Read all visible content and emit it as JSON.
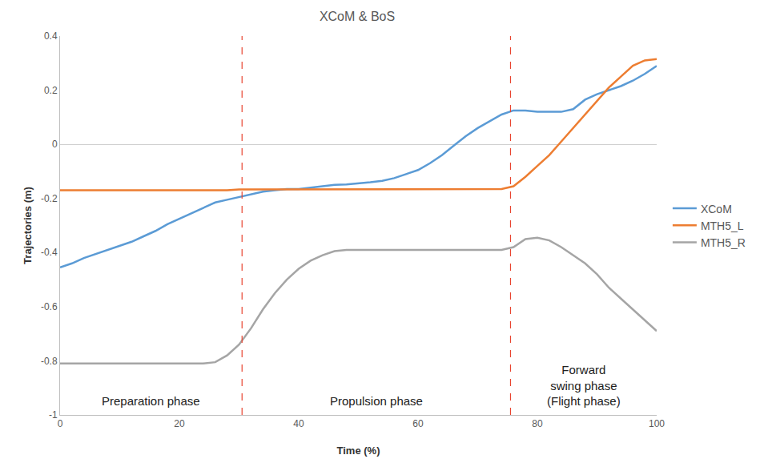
{
  "chart_data": {
    "type": "line",
    "title": "XCoM & BoS",
    "x_label": "Time (%)",
    "y_label": "Trajectories (m)",
    "x": [
      0,
      2,
      4,
      6,
      8,
      10,
      12,
      14,
      16,
      18,
      20,
      22,
      24,
      26,
      28,
      30,
      32,
      34,
      36,
      38,
      40,
      42,
      44,
      46,
      48,
      50,
      52,
      54,
      56,
      58,
      60,
      62,
      64,
      66,
      68,
      70,
      72,
      74,
      76,
      78,
      80,
      82,
      84,
      86,
      88,
      90,
      92,
      94,
      96,
      98,
      100
    ],
    "series": [
      {
        "name": "XCoM",
        "color": "#5b9bd5",
        "values": [
          -0.455,
          -0.44,
          -0.42,
          -0.405,
          -0.39,
          -0.375,
          -0.36,
          -0.34,
          -0.32,
          -0.295,
          -0.275,
          -0.255,
          -0.235,
          -0.215,
          -0.205,
          -0.195,
          -0.185,
          -0.175,
          -0.17,
          -0.165,
          -0.165,
          -0.16,
          -0.155,
          -0.15,
          -0.148,
          -0.145,
          -0.14,
          -0.135,
          -0.125,
          -0.11,
          -0.095,
          -0.07,
          -0.04,
          -0.005,
          0.03,
          0.06,
          0.085,
          0.11,
          0.125,
          0.125,
          0.12,
          0.12,
          0.12,
          0.13,
          0.165,
          0.185,
          0.2,
          0.215,
          0.235,
          0.26,
          0.29
        ]
      },
      {
        "name": "MTH5_L",
        "color": "#ed7d31",
        "values": [
          -0.17,
          -0.17,
          -0.17,
          -0.17,
          -0.17,
          -0.17,
          -0.17,
          -0.17,
          -0.17,
          -0.17,
          -0.17,
          -0.17,
          -0.17,
          -0.17,
          -0.17,
          -0.167,
          -0.167,
          -0.167,
          -0.167,
          -0.167,
          -0.167,
          -0.167,
          -0.167,
          -0.167,
          -0.167,
          -0.167,
          -0.167,
          -0.167,
          -0.167,
          -0.167,
          -0.167,
          -0.167,
          -0.167,
          -0.167,
          -0.167,
          -0.167,
          -0.167,
          -0.165,
          -0.155,
          -0.12,
          -0.08,
          -0.04,
          0.01,
          0.06,
          0.11,
          0.16,
          0.21,
          0.25,
          0.29,
          0.31,
          0.315
        ]
      },
      {
        "name": "MTH5_R",
        "color": "#a5a5a5",
        "values": [
          -0.81,
          -0.81,
          -0.81,
          -0.81,
          -0.81,
          -0.81,
          -0.81,
          -0.81,
          -0.81,
          -0.81,
          -0.81,
          -0.81,
          -0.81,
          -0.805,
          -0.78,
          -0.74,
          -0.68,
          -0.61,
          -0.55,
          -0.5,
          -0.46,
          -0.43,
          -0.41,
          -0.395,
          -0.39,
          -0.39,
          -0.39,
          -0.39,
          -0.39,
          -0.39,
          -0.39,
          -0.39,
          -0.39,
          -0.39,
          -0.39,
          -0.39,
          -0.39,
          -0.39,
          -0.38,
          -0.35,
          -0.345,
          -0.355,
          -0.38,
          -0.41,
          -0.44,
          -0.48,
          -0.53,
          -0.57,
          -0.61,
          -0.65,
          -0.69
        ]
      }
    ],
    "xlim": [
      0,
      100
    ],
    "xticks": [
      0,
      20,
      40,
      60,
      80,
      100
    ],
    "ylim": [
      -1,
      0.4
    ],
    "yticks": [
      -1,
      -0.8,
      -0.6,
      -0.4,
      -0.2,
      0,
      0.2,
      0.4
    ],
    "grid": false,
    "legend": "right",
    "phases": [
      {
        "label": [
          "Preparation phase"
        ],
        "start": 0,
        "end": 30.5
      },
      {
        "label": [
          "Propulsion phase"
        ],
        "start": 30.5,
        "end": 75.5
      },
      {
        "label": [
          "Forward",
          "swing phase",
          "(Flight phase)"
        ],
        "start": 75.5,
        "end": 100
      }
    ]
  }
}
